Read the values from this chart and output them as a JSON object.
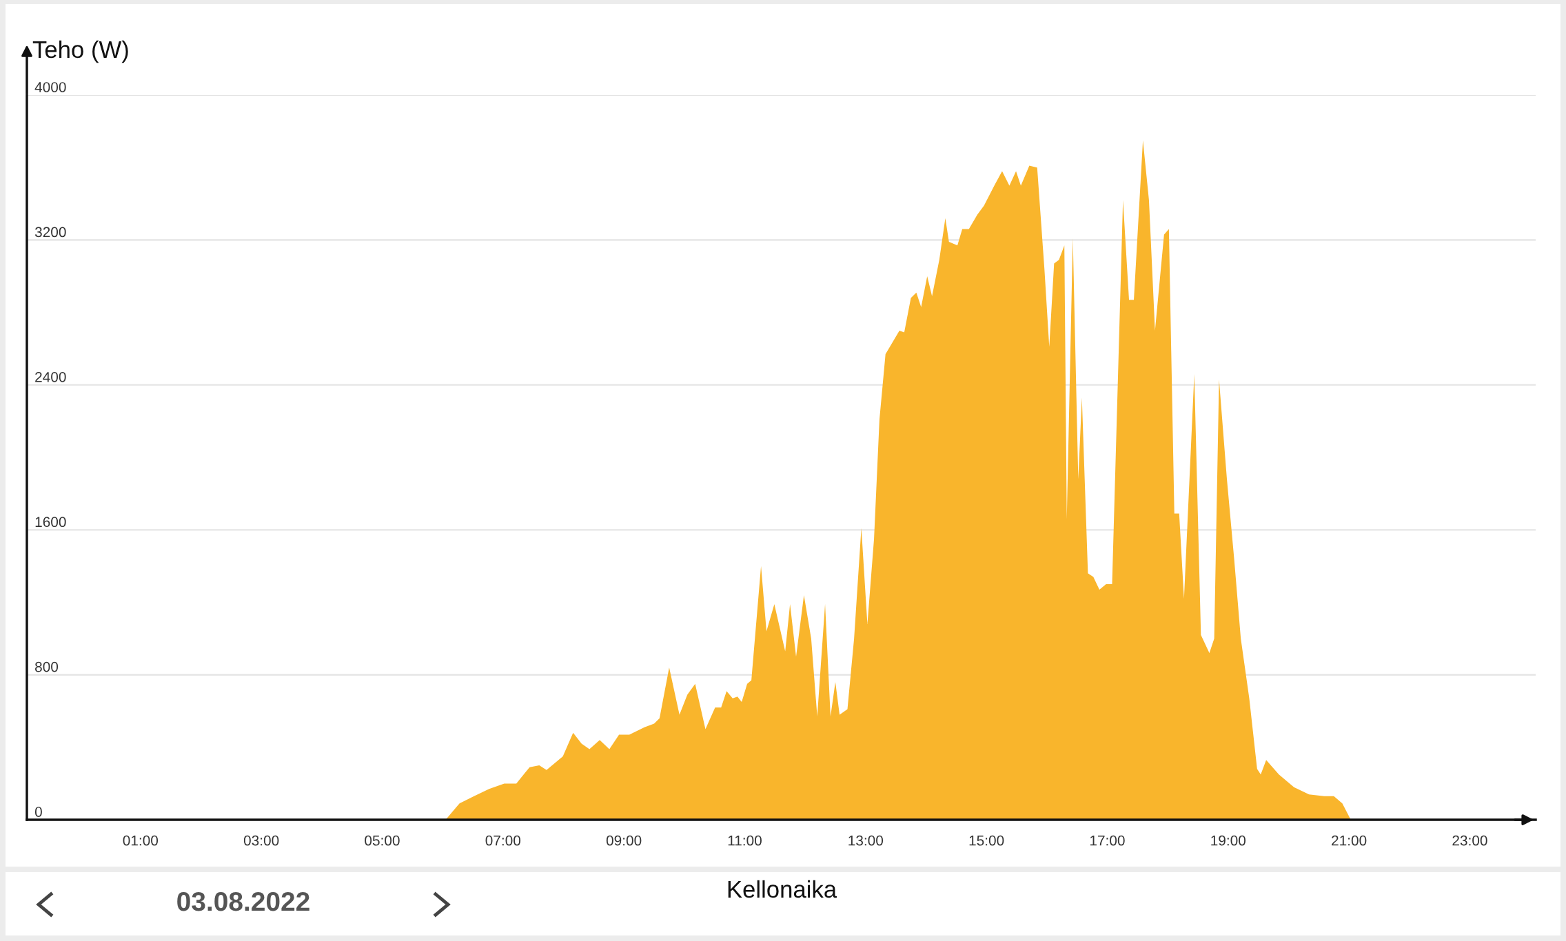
{
  "chart_data": {
    "type": "area",
    "ylabel": "Teho (W)",
    "xlabel": "Kellonaika",
    "annotations": [
      "03.08.2022"
    ],
    "x": [
      0,
      6.05,
      6.28,
      6.52,
      6.77,
      7.02,
      7.22,
      7.44,
      7.6,
      7.72,
      7.99,
      8.16,
      8.3,
      8.43,
      8.6,
      8.76,
      8.92,
      9.09,
      9.34,
      9.5,
      9.59,
      9.75,
      9.92,
      10.05,
      10.18,
      10.35,
      10.51,
      10.61,
      10.7,
      10.8,
      10.88,
      10.95,
      11.04,
      11.11,
      11.27,
      11.36,
      11.49,
      11.67,
      11.75,
      11.85,
      11.98,
      12.1,
      12.2,
      12.33,
      12.42,
      12.5,
      12.57,
      12.7,
      12.81,
      12.93,
      13.03,
      13.14,
      13.23,
      13.33,
      13.56,
      13.64,
      13.75,
      13.84,
      13.92,
      14.02,
      14.1,
      14.22,
      14.32,
      14.38,
      14.52,
      14.6,
      14.71,
      14.85,
      14.96,
      15.13,
      15.26,
      15.38,
      15.49,
      15.57,
      15.71,
      15.84,
      15.96,
      16.04,
      16.12,
      16.2,
      16.29,
      16.33,
      16.43,
      16.52,
      16.58,
      16.68,
      16.77,
      16.87,
      16.98,
      17.08,
      17.26,
      17.36,
      17.44,
      17.59,
      17.69,
      17.79,
      17.94,
      18.02,
      18.11,
      18.19,
      18.27,
      18.44,
      18.55,
      18.69,
      18.77,
      18.85,
      18.98,
      19.1,
      19.21,
      19.35,
      19.48,
      19.54,
      19.63,
      19.84,
      20.09,
      20.34,
      20.59,
      20.75,
      20.89,
      21.03,
      24
    ],
    "series": [
      {
        "color": "#f9b52c",
        "values": [
          0,
          0,
          90,
          130,
          170,
          200,
          200,
          290,
          300,
          275,
          350,
          480,
          420,
          390,
          440,
          390,
          470,
          470,
          510,
          530,
          560,
          840,
          580,
          690,
          750,
          500,
          620,
          620,
          710,
          670,
          680,
          650,
          750,
          770,
          1400,
          1040,
          1190,
          930,
          1190,
          900,
          1240,
          1000,
          570,
          1190,
          570,
          760,
          580,
          610,
          1000,
          1610,
          1080,
          1550,
          2210,
          2570,
          2700,
          2690,
          2880,
          2910,
          2830,
          3000,
          2890,
          3090,
          3320,
          3190,
          3170,
          3260,
          3260,
          3340,
          3390,
          3500,
          3580,
          3500,
          3580,
          3500,
          3610,
          3600,
          3040,
          2610,
          3070,
          3090,
          3170,
          1660,
          3210,
          1880,
          2330,
          1360,
          1340,
          1270,
          1300,
          1300,
          3420,
          2870,
          2870,
          3750,
          3420,
          2700,
          3230,
          3260,
          1690,
          1690,
          1220,
          2460,
          1020,
          920,
          1000,
          2430,
          1880,
          1440,
          1000,
          670,
          280,
          250,
          330,
          250,
          180,
          140,
          130,
          130,
          90,
          0,
          0
        ]
      }
    ],
    "xlim": [
      -0.88,
      24.09
    ],
    "xticks": [
      {
        "value": 1,
        "label": "01:00"
      },
      {
        "value": 3,
        "label": "03:00"
      },
      {
        "value": 5,
        "label": "05:00"
      },
      {
        "value": 7,
        "label": "07:00"
      },
      {
        "value": 9,
        "label": "09:00"
      },
      {
        "value": 11,
        "label": "11:00"
      },
      {
        "value": 13,
        "label": "13:00"
      },
      {
        "value": 15,
        "label": "15:00"
      },
      {
        "value": 17,
        "label": "17:00"
      },
      {
        "value": 19,
        "label": "19:00"
      },
      {
        "value": 21,
        "label": "21:00"
      },
      {
        "value": 23,
        "label": "23:00"
      }
    ],
    "ylim": [
      0,
      4000
    ],
    "yticks": [
      0,
      800,
      1600,
      2400,
      3200,
      4000
    ],
    "grid": "y",
    "legend": false
  }
}
